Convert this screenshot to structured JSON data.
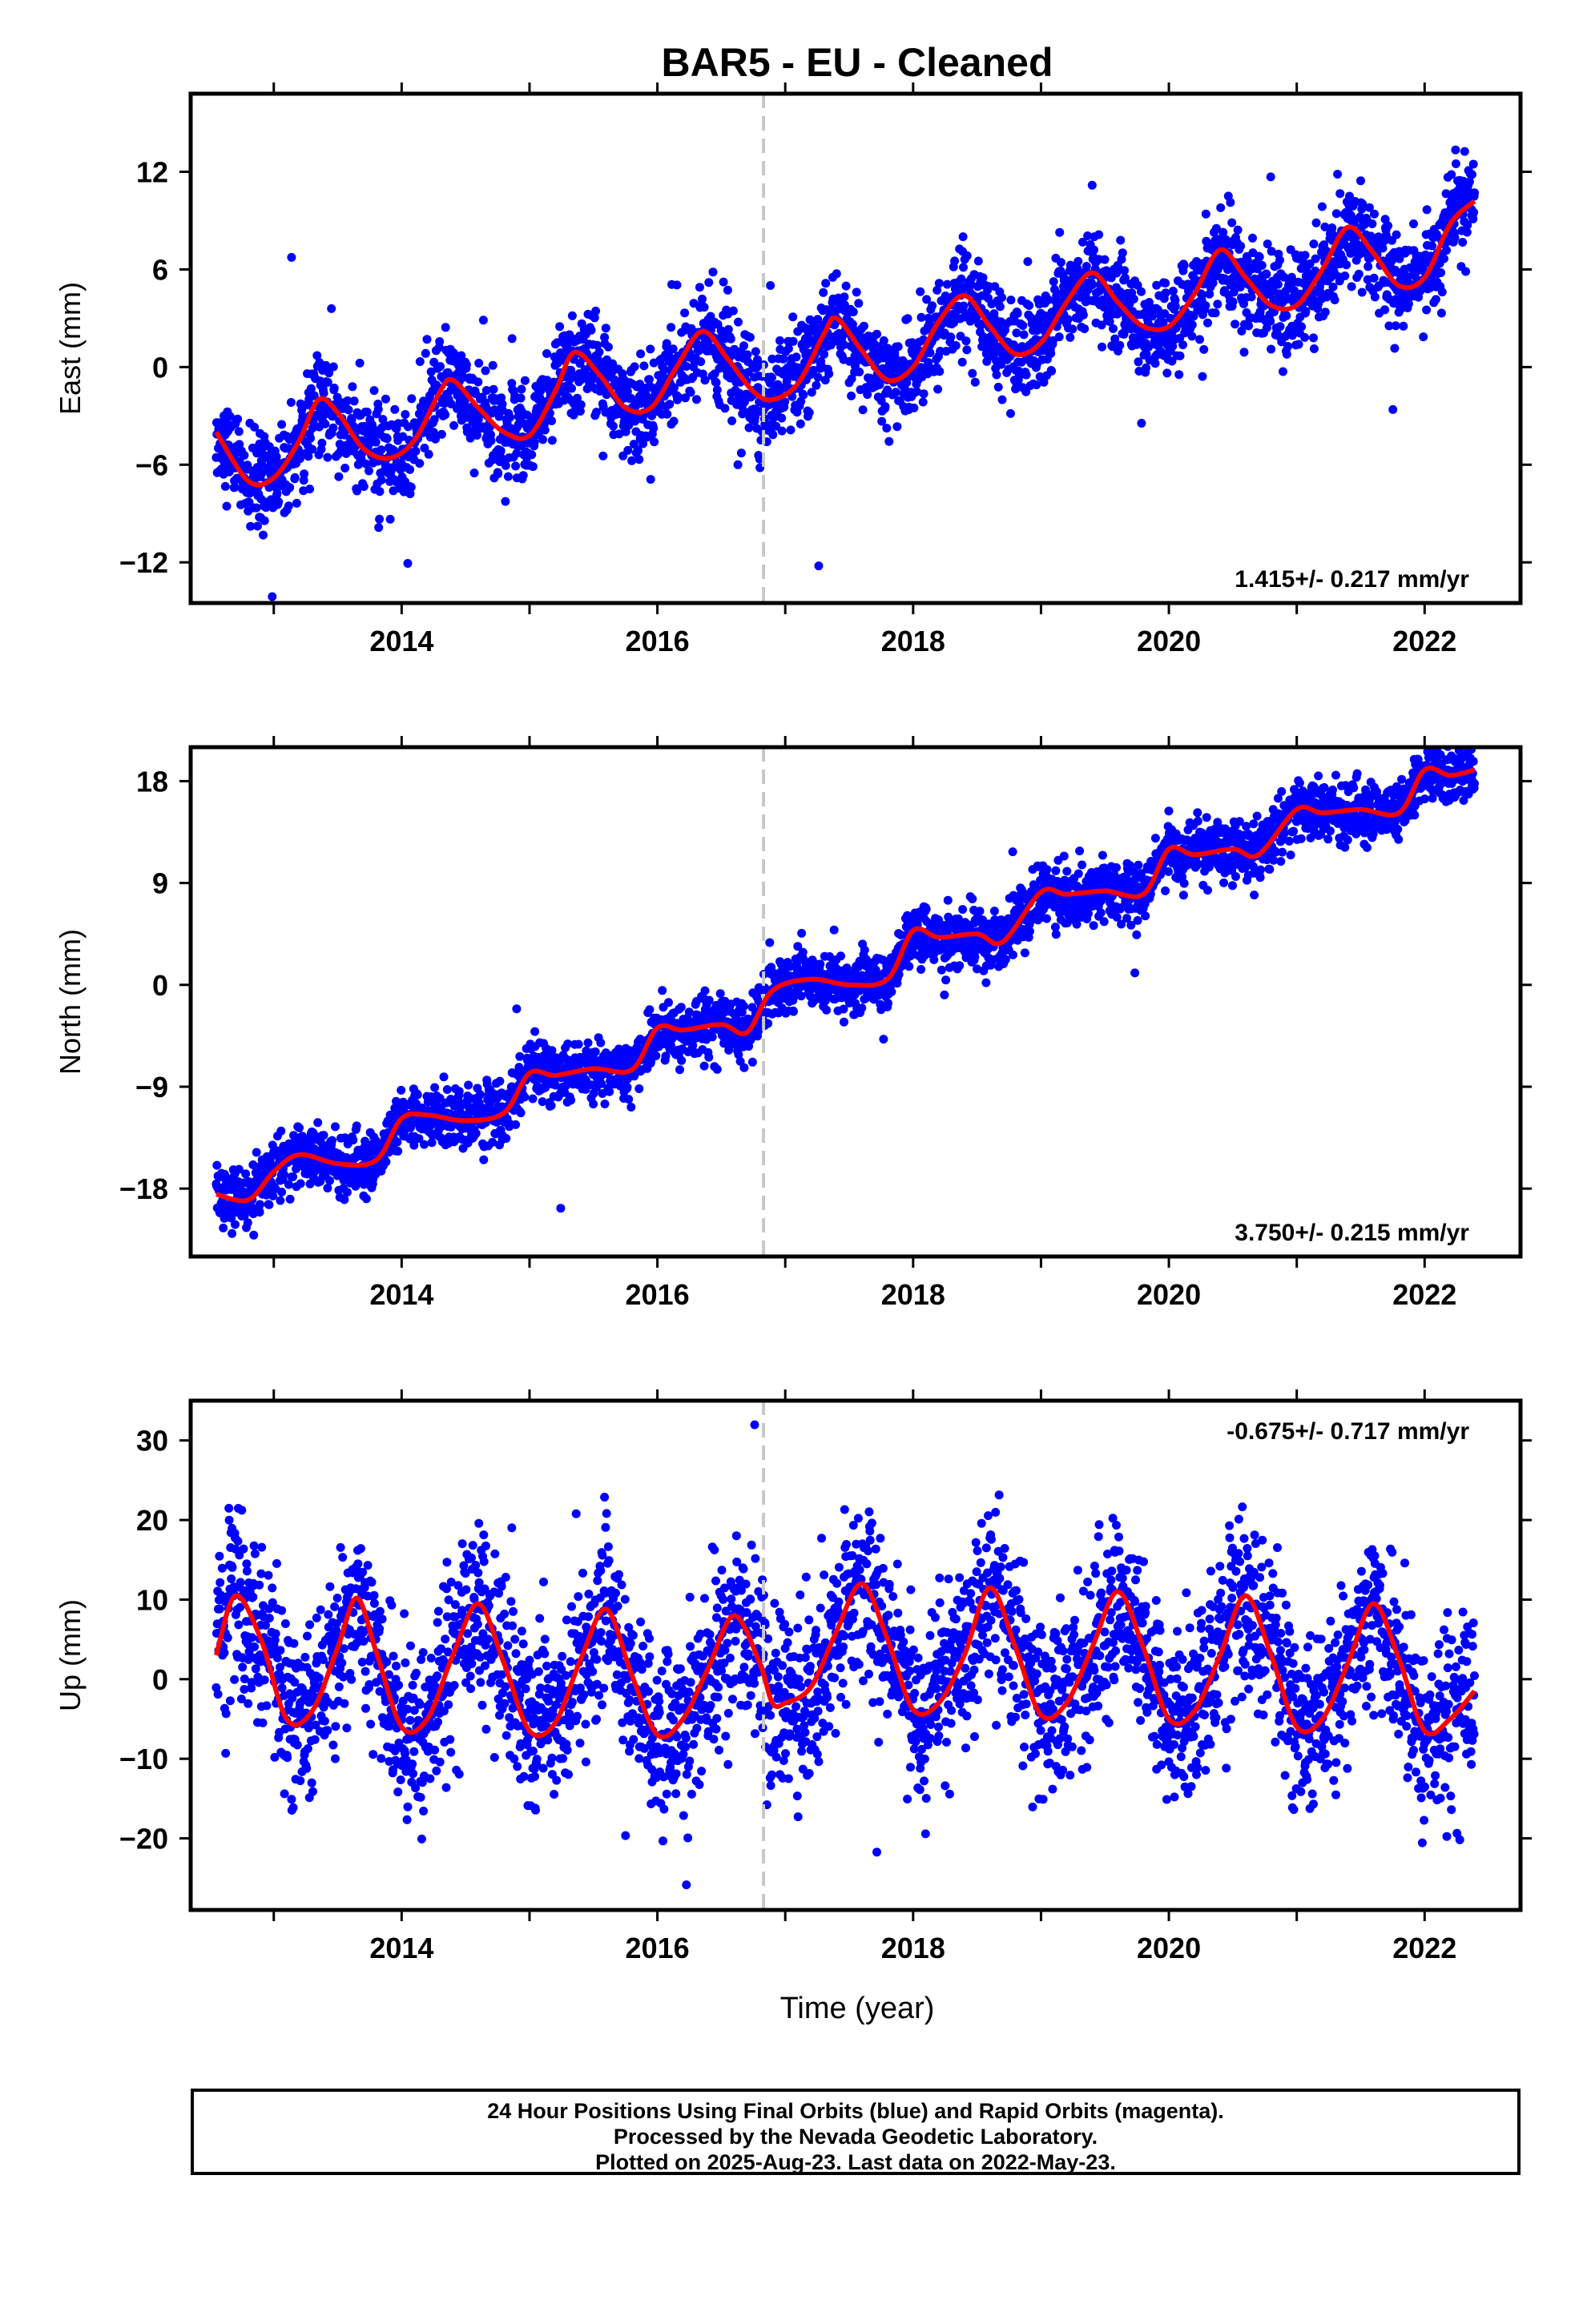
{
  "title": "BAR5  - EU - Cleaned",
  "x_axis_label": "Time (year)",
  "footer": {
    "line1": "24 Hour Positions Using Final Orbits (blue) and Rapid Orbits (magenta).",
    "line2": "Processed by the Nevada Geodetic Laboratory.",
    "line3": "Plotted on 2025-Aug-23. Last data on 2022-May-23."
  },
  "colors": {
    "final_orbits": "#0000ff",
    "model_fit": "#ff0000",
    "event_line": "#c8c8c8",
    "frame": "#000000"
  },
  "chart_data": [
    {
      "type": "scatter",
      "ylabel": "East (mm)",
      "xlim": [
        2012.35,
        2022.75
      ],
      "ylim": [
        -14.5,
        16.8
      ],
      "yticks": [
        -12,
        -6,
        0,
        6,
        12
      ],
      "xticks": [
        2014,
        2016,
        2018,
        2020,
        2022
      ],
      "event_line_x": 2016.83,
      "rate_text": "1.415+/- 0.217 mm/yr",
      "rate_position": "bottom-right",
      "grid": false,
      "data_start": 2012.55,
      "data_end": 2022.39,
      "fit": {
        "x": [
          2012.55,
          2012.8,
          2013.0,
          2013.2,
          2013.35,
          2013.5,
          2013.7,
          2013.9,
          2014.1,
          2014.3,
          2014.4,
          2014.6,
          2014.8,
          2015.0,
          2015.2,
          2015.35,
          2015.55,
          2015.75,
          2015.95,
          2016.15,
          2016.35,
          2016.55,
          2016.75,
          2016.9,
          2017.1,
          2017.3,
          2017.4,
          2017.6,
          2017.8,
          2018.0,
          2018.2,
          2018.4,
          2018.6,
          2018.8,
          2019.0,
          2019.2,
          2019.4,
          2019.6,
          2019.8,
          2020.0,
          2020.2,
          2020.4,
          2020.6,
          2020.8,
          2021.0,
          2021.2,
          2021.4,
          2021.6,
          2021.8,
          2022.0,
          2022.2,
          2022.39
        ],
        "y": [
          -4.0,
          -7.0,
          -6.8,
          -4.5,
          -2.0,
          -2.8,
          -5.0,
          -5.6,
          -4.5,
          -1.5,
          -0.8,
          -2.5,
          -4.0,
          -4.2,
          -1.5,
          0.9,
          -0.5,
          -2.5,
          -2.5,
          0.0,
          2.2,
          0.5,
          -1.5,
          -2.0,
          -1.0,
          2.0,
          3.0,
          1.0,
          -0.8,
          0.0,
          2.8,
          4.4,
          2.5,
          0.8,
          1.5,
          4.0,
          5.8,
          4.0,
          2.5,
          2.5,
          4.5,
          7.2,
          5.5,
          3.8,
          3.8,
          6.0,
          8.6,
          7.0,
          5.0,
          5.5,
          8.8,
          10.2
        ]
      },
      "scatter_sigma": 1.5
    },
    {
      "type": "scatter",
      "ylabel": "North (mm)",
      "xlim": [
        2012.35,
        2022.75
      ],
      "ylim": [
        -24,
        21
      ],
      "yticks": [
        -18,
        -9,
        0,
        9,
        18
      ],
      "xticks": [
        2014,
        2016,
        2018,
        2020,
        2022
      ],
      "event_line_x": 2016.83,
      "rate_text": "3.750+/- 0.215 mm/yr",
      "rate_position": "bottom-right",
      "grid": false,
      "data_start": 2012.55,
      "data_end": 2022.39,
      "fit": {
        "x": [
          2012.55,
          2012.8,
          2013.0,
          2013.2,
          2013.5,
          2013.8,
          2014.0,
          2014.2,
          2014.5,
          2014.8,
          2015.0,
          2015.2,
          2015.5,
          2015.8,
          2016.0,
          2016.2,
          2016.5,
          2016.7,
          2016.9,
          2017.2,
          2017.5,
          2017.8,
          2018.0,
          2018.2,
          2018.5,
          2018.7,
          2019.0,
          2019.2,
          2019.5,
          2019.8,
          2020.0,
          2020.2,
          2020.5,
          2020.7,
          2021.0,
          2021.2,
          2021.5,
          2021.8,
          2022.0,
          2022.2,
          2022.39
        ],
        "y": [
          -18.5,
          -19.0,
          -16.5,
          -15.0,
          -15.8,
          -15.5,
          -11.8,
          -11.5,
          -12.0,
          -11.3,
          -7.8,
          -8.0,
          -7.4,
          -7.5,
          -3.8,
          -4.0,
          -3.5,
          -4.2,
          -0.5,
          0.5,
          0.0,
          0.5,
          4.8,
          4.2,
          4.5,
          3.8,
          8.2,
          8.0,
          8.3,
          8.0,
          12.0,
          11.5,
          12.0,
          11.5,
          15.5,
          15.2,
          15.5,
          15.2,
          19.0,
          18.5,
          19.0
        ]
      },
      "scatter_sigma": 1.3
    },
    {
      "type": "scatter",
      "ylabel": "Up (mm)",
      "xlim": [
        2012.35,
        2022.75
      ],
      "ylim": [
        -29,
        35
      ],
      "yticks": [
        -20,
        -10,
        0,
        10,
        20,
        30
      ],
      "xticks": [
        2014,
        2016,
        2018,
        2020,
        2022
      ],
      "event_line_x": 2016.83,
      "rate_text": "-0.675+/- 0.717 mm/yr",
      "rate_position": "top-right",
      "grid": false,
      "data_start": 2012.55,
      "data_end": 2022.39,
      "fit": {
        "x": [
          2012.55,
          2012.7,
          2012.9,
          2013.1,
          2013.3,
          2013.5,
          2013.65,
          2013.8,
          2014.0,
          2014.2,
          2014.4,
          2014.6,
          2014.8,
          2015.0,
          2015.2,
          2015.4,
          2015.6,
          2015.8,
          2016.0,
          2016.2,
          2016.4,
          2016.6,
          2016.8,
          2016.9,
          2017.0,
          2017.2,
          2017.4,
          2017.6,
          2017.8,
          2018.0,
          2018.2,
          2018.4,
          2018.6,
          2018.8,
          2019.0,
          2019.2,
          2019.4,
          2019.6,
          2019.8,
          2020.0,
          2020.2,
          2020.4,
          2020.6,
          2020.8,
          2021.0,
          2021.2,
          2021.4,
          2021.6,
          2021.8,
          2022.0,
          2022.2,
          2022.39
        ],
        "y": [
          3.0,
          10.5,
          5.0,
          -5.0,
          -4.0,
          4.0,
          10.2,
          3.5,
          -6.0,
          -5.0,
          3.0,
          9.5,
          2.0,
          -6.5,
          -5.5,
          2.5,
          8.8,
          0.5,
          -7.0,
          -5.0,
          1.5,
          8.0,
          2.0,
          -3.0,
          -3.0,
          -1.0,
          6.0,
          12.0,
          5.0,
          -3.8,
          -3.0,
          3.0,
          11.5,
          4.0,
          -4.5,
          -3.0,
          4.0,
          11.0,
          4.0,
          -5.0,
          -4.0,
          3.0,
          10.5,
          3.0,
          -6.0,
          -5.0,
          2.0,
          9.5,
          2.5,
          -6.5,
          -5.0,
          -1.5
        ]
      },
      "scatter_sigma": 5.5
    }
  ]
}
